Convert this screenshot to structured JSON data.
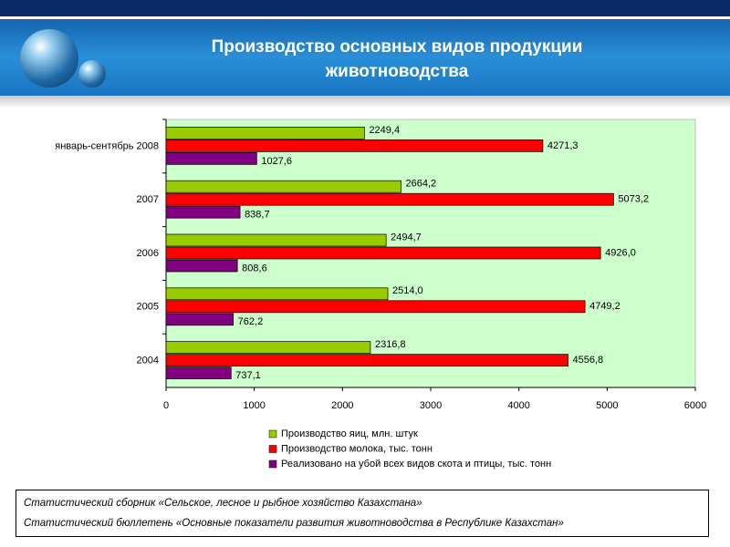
{
  "chart_data": {
    "type": "hbar",
    "title": "Производство основных видов продукции животноводства",
    "categories": [
      "январь-сентябрь 2008",
      "2007",
      "2006",
      "2005",
      "2004"
    ],
    "series": [
      {
        "name": "Производство яиц, млн. штук",
        "color": "#99cc00",
        "values": [
          2249.4,
          2664.2,
          2494.7,
          2514.0,
          2316.8
        ],
        "value_labels": [
          "2249,4",
          "2664,2",
          "2494,7",
          "2514,0",
          "2316,8"
        ]
      },
      {
        "name": "Производство молока, тыс. тонн",
        "color": "#ff0000",
        "values": [
          4271.3,
          5073.2,
          4926.0,
          4749.2,
          4556.8
        ],
        "value_labels": [
          "4271,3",
          "5073,2",
          "4926,0",
          "4749,2",
          "4556,8"
        ]
      },
      {
        "name": "Реализовано на убой всех видов скота и птицы, тыс. тонн",
        "color": "#800080",
        "values": [
          1027.6,
          838.7,
          808.6,
          762.2,
          737.1
        ],
        "value_labels": [
          "1027,6",
          "838,7",
          "808,6",
          "762,2",
          "737,1"
        ]
      }
    ],
    "xlim": [
      0,
      6000
    ],
    "xticks": [
      0,
      1000,
      2000,
      3000,
      4000,
      5000,
      6000
    ],
    "plot_background": "#ccffcc",
    "legend": "bottom"
  },
  "sources": [
    "Статистический сборник «Сельское, лесное и рыбное хозяйство Казахстана»",
    "Статистический бюллетень «Основные показатели развития животноводства в Республике Казахстан»"
  ]
}
